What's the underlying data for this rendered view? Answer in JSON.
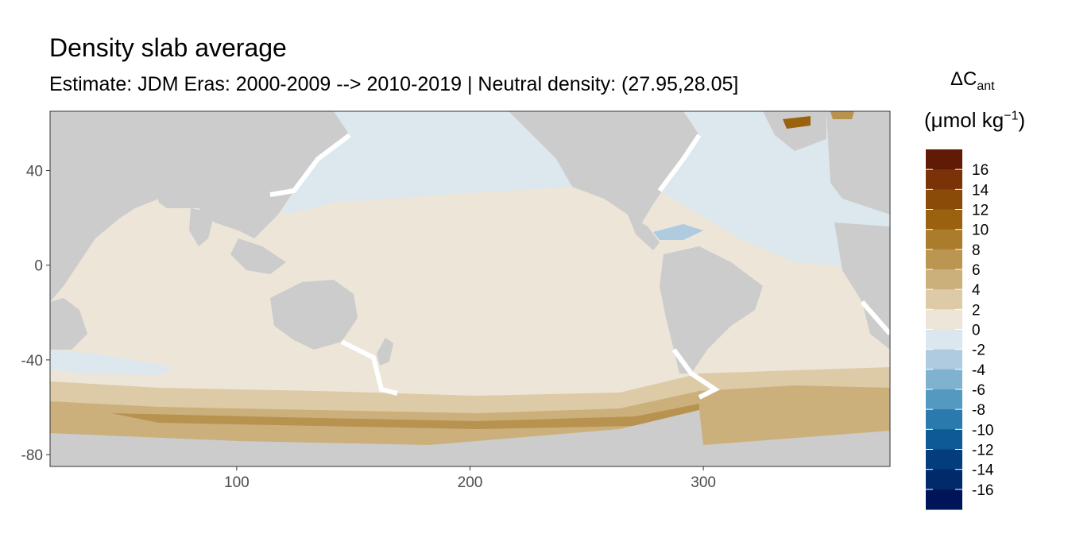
{
  "title": "Density slab average",
  "subtitle": "Estimate: JDM Eras: 2000-2009 --> 2010-2019 | Neutral density: (27.95,28.05]",
  "legend": {
    "title_main": "ΔC",
    "title_sub": "ant",
    "unit_prefix": "(μmol kg",
    "unit_sup": "−1",
    "unit_suffix": ")",
    "labels": [
      "16",
      "14",
      "12",
      "10",
      "8",
      "6",
      "4",
      "2",
      "0",
      "-2",
      "-4",
      "-6",
      "-8",
      "-10",
      "-12",
      "-14",
      "-16"
    ],
    "bins": [
      {
        "color": "#601a05"
      },
      {
        "color": "#7a3306"
      },
      {
        "color": "#8a4a08"
      },
      {
        "color": "#9a620f"
      },
      {
        "color": "#ab7c2c"
      },
      {
        "color": "#bb9650"
      },
      {
        "color": "#cbb07c"
      },
      {
        "color": "#dccba6"
      },
      {
        "color": "#ece5d8"
      },
      {
        "color": "#dbe7ee"
      },
      {
        "color": "#aecbe0"
      },
      {
        "color": "#80b2cf"
      },
      {
        "color": "#5499bf"
      },
      {
        "color": "#2a7aad"
      },
      {
        "color": "#0d5a96"
      },
      {
        "color": "#033d7e"
      },
      {
        "color": "#012a6b"
      },
      {
        "color": "#001559"
      }
    ]
  },
  "colors": {
    "land": "#cccccc",
    "nodata": "#ffffff",
    "neutral": "#ece5d8",
    "light_blue": "#dde8ee",
    "tan_light": "#dccba6",
    "tan_mid": "#cbb07c",
    "tan_dark": "#b8924f",
    "brown": "#9a620f",
    "blue_mid": "#aecbe0"
  },
  "map_data": {
    "type": "raster-map",
    "x_ticks": [
      100,
      200,
      300
    ],
    "y_ticks": [
      40,
      0,
      -40,
      -80
    ],
    "xlim": [
      20,
      380
    ],
    "ylim": [
      -85,
      65
    ]
  }
}
